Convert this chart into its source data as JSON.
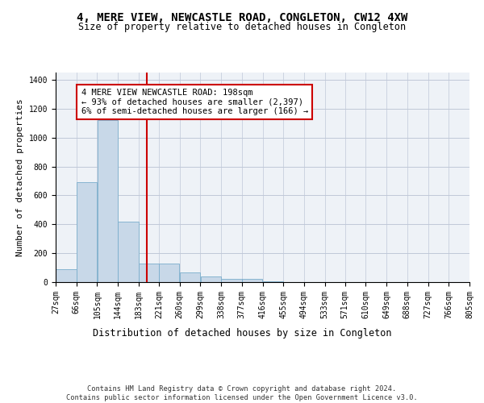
{
  "title": "4, MERE VIEW, NEWCASTLE ROAD, CONGLETON, CW12 4XW",
  "subtitle": "Size of property relative to detached houses in Congleton",
  "xlabel": "Distribution of detached houses by size in Congleton",
  "ylabel": "Number of detached properties",
  "footer_line1": "Contains HM Land Registry data © Crown copyright and database right 2024.",
  "footer_line2": "Contains public sector information licensed under the Open Government Licence v3.0.",
  "bar_edges": [
    27,
    66,
    105,
    144,
    183,
    221,
    260,
    299,
    338,
    377,
    416,
    455,
    494,
    533,
    571,
    610,
    649,
    688,
    727,
    766,
    805
  ],
  "bar_heights": [
    90,
    690,
    1120,
    420,
    130,
    130,
    65,
    40,
    20,
    20,
    5,
    0,
    0,
    0,
    0,
    0,
    0,
    0,
    0,
    0
  ],
  "bar_color": "#c8d8e8",
  "bar_edgecolor": "#7aaecc",
  "property_size": 198,
  "vline_color": "#cc0000",
  "annotation_text": "4 MERE VIEW NEWCASTLE ROAD: 198sqm\n← 93% of detached houses are smaller (2,397)\n6% of semi-detached houses are larger (166) →",
  "annotation_box_edgecolor": "#cc0000",
  "ylim": [
    0,
    1450
  ],
  "yticks": [
    0,
    200,
    400,
    600,
    800,
    1000,
    1200,
    1400
  ],
  "title_fontsize": 10,
  "subtitle_fontsize": 8.5,
  "xlabel_fontsize": 8.5,
  "ylabel_fontsize": 8,
  "tick_fontsize": 7,
  "annotation_fontsize": 7.5,
  "background_color": "#eef2f7",
  "grid_color": "#c0c8d8"
}
